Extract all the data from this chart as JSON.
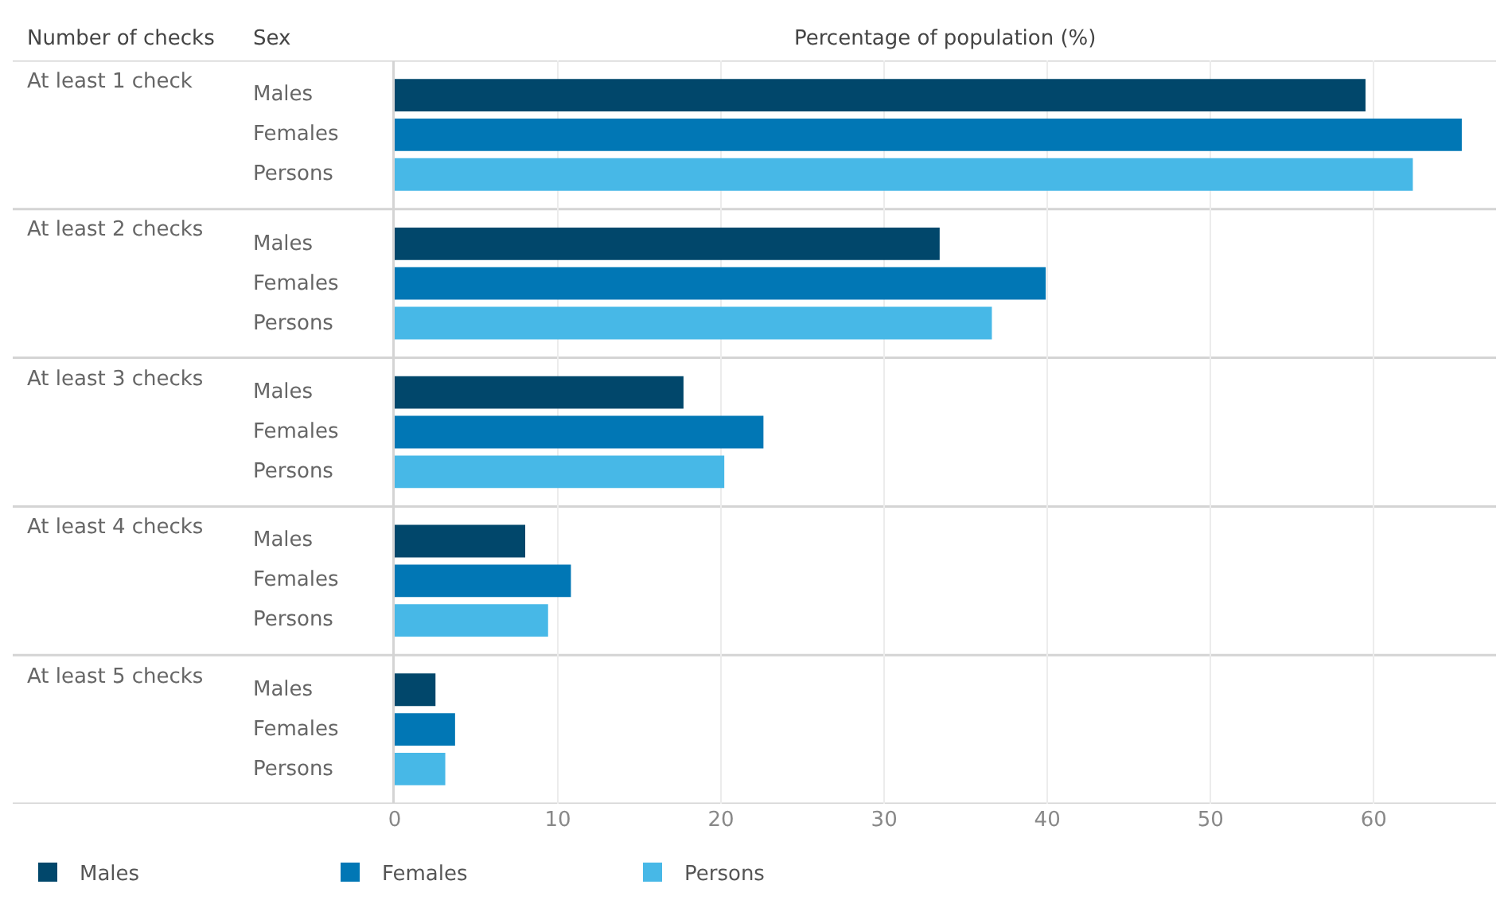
{
  "chart_data": {
    "type": "bar",
    "orientation": "horizontal",
    "xlabel": "Percentage of population (%)",
    "ylabel": "Number of checks",
    "legend_title": "Sex",
    "categories": [
      "At least 1 check",
      "At least 2 checks",
      "At least 3 checks",
      "At least 4 checks",
      "At least 5 checks"
    ],
    "series": [
      {
        "name": "Males",
        "color": "#01476b",
        "values": [
          59.5,
          33.4,
          17.7,
          8.0,
          2.5
        ]
      },
      {
        "name": "Females",
        "color": "#0177b5",
        "values": [
          65.4,
          39.9,
          22.6,
          10.8,
          3.7
        ]
      },
      {
        "name": "Persons",
        "color": "#47b8e7",
        "values": [
          62.4,
          36.6,
          20.2,
          9.4,
          3.1
        ]
      }
    ],
    "xlim": [
      0,
      67.5
    ],
    "xticks": [
      0,
      10,
      20,
      30,
      40,
      50,
      60
    ],
    "grid": "x",
    "legend": "bottom left"
  }
}
